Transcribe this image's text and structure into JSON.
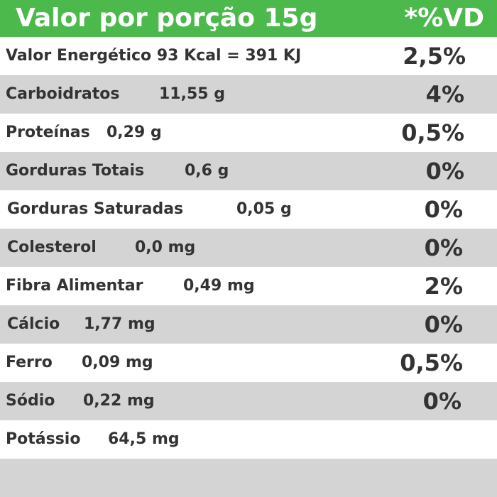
{
  "header": {
    "title": "Valor por porção 15g",
    "vd_label": "*%VD"
  },
  "rows": [
    {
      "name": "Valor Energético 93 Kcal = 391 KJ",
      "vd": "2,5%"
    },
    {
      "name": "Carboidratos",
      "amount": "11,55 g",
      "vd": "4%"
    },
    {
      "name": "Proteínas",
      "amount": "0,29 g",
      "vd": "0,5%"
    },
    {
      "name": "Gorduras Totais",
      "amount": "0,6 g",
      "vd": "0%"
    },
    {
      "name": "Gorduras Saturadas",
      "amount": "0,05 g",
      "vd": "0%"
    },
    {
      "name": "Colesterol",
      "amount": "0,0 mg",
      "vd": "0%"
    },
    {
      "name": "Fibra Alimentar",
      "amount": "0,49 mg",
      "vd": "2%"
    },
    {
      "name": "Cálcio",
      "amount": "1,77 mg",
      "vd": "0%"
    },
    {
      "name": "Ferro",
      "amount": "0,09 mg",
      "vd": "0,5%"
    },
    {
      "name": "Sódio",
      "amount": "0,22 mg",
      "vd": "0%"
    },
    {
      "name": "Potássio",
      "amount": "64,5 mg"
    }
  ]
}
